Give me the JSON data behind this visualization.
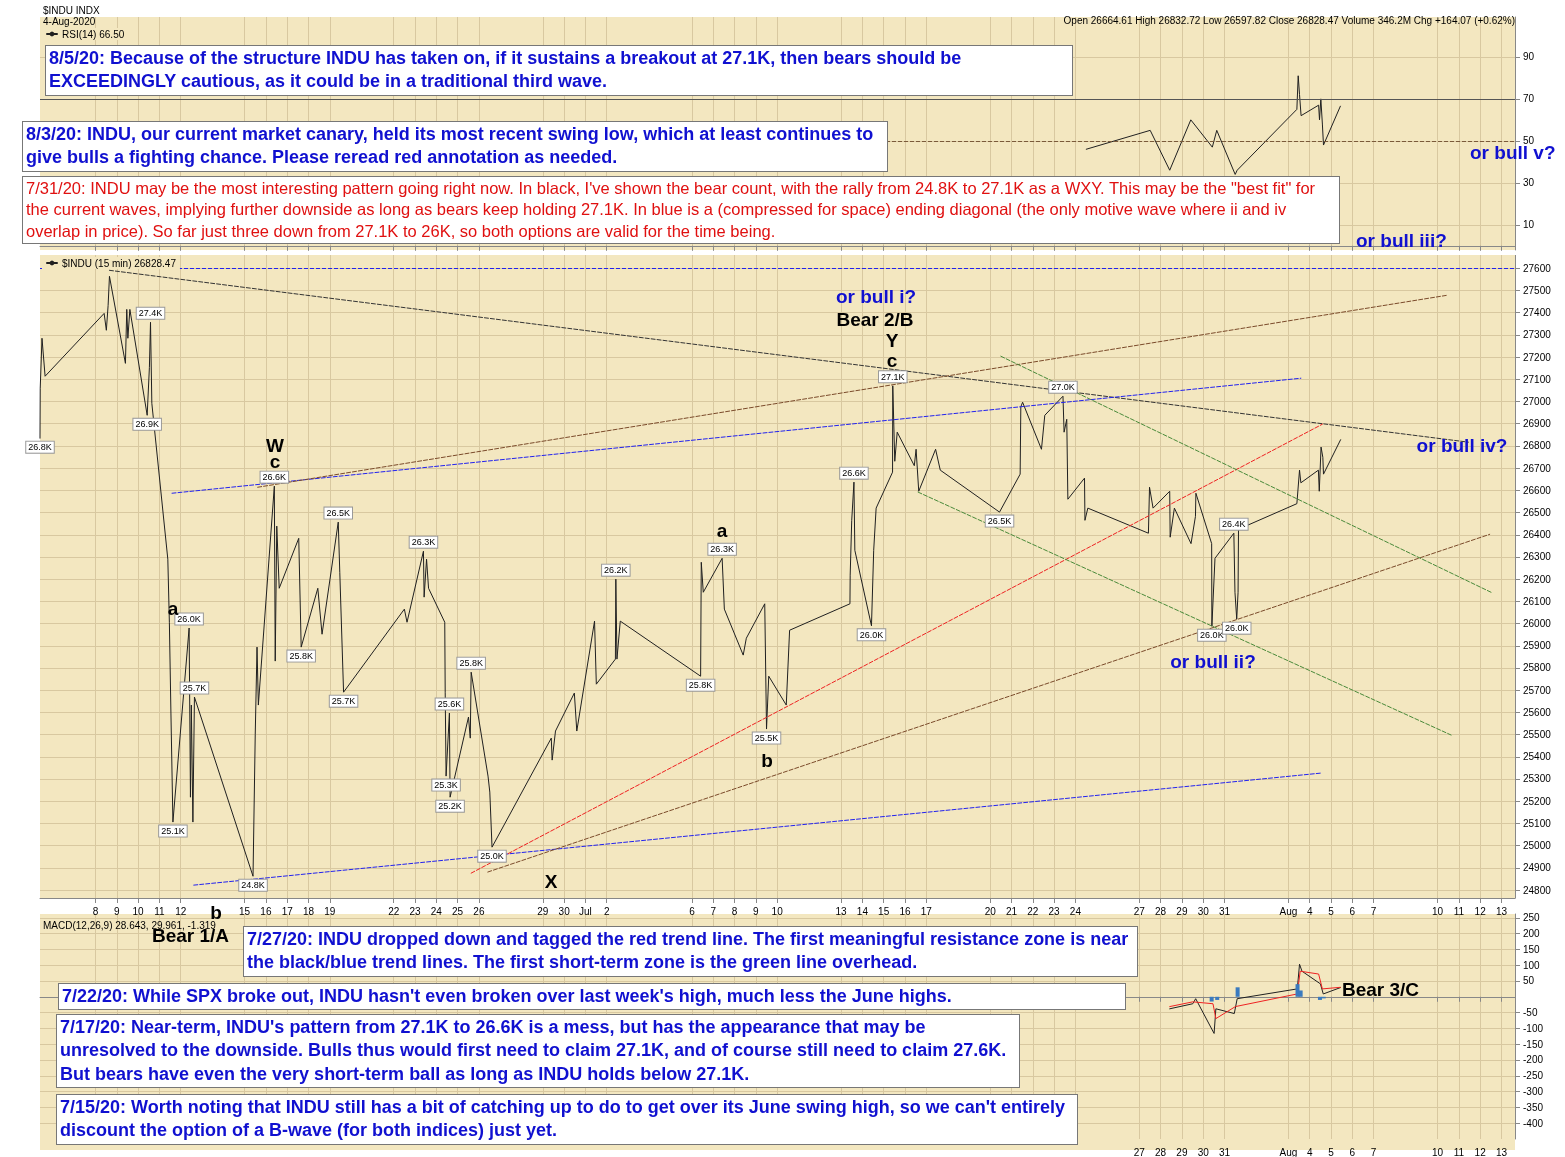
{
  "chart_data": [
    {
      "type": "line",
      "title": "$INDU INDX",
      "subtitle": "4-Aug-2020",
      "legend": "top left",
      "grid": true,
      "marker": "none",
      "tick_labels": "y",
      "xlim": [
        "2020-06-05T09:30",
        "2020-08-13T15:15"
      ],
      "ylim": [
        -2,
        109
      ],
      "yticks": [
        10,
        30,
        50,
        70,
        90
      ],
      "xticks": [
        "2020-06-08",
        "2020-06-09",
        "2020-06-10",
        "2020-06-11",
        "2020-06-12",
        "2020-06-15",
        "2020-06-16",
        "2020-06-17",
        "2020-06-18",
        "2020-06-19",
        "2020-06-22",
        "2020-06-23",
        "2020-06-24",
        "2020-06-25",
        "2020-06-26",
        "2020-06-29",
        "2020-06-30",
        "2020-07-01",
        "2020-07-02",
        "2020-07-06",
        "2020-07-07",
        "2020-07-08",
        "2020-07-09",
        "2020-07-10",
        "2020-07-13",
        "2020-07-14",
        "2020-07-15",
        "2020-07-16",
        "2020-07-17",
        "2020-07-20",
        "2020-07-21",
        "2020-07-22",
        "2020-07-23",
        "2020-07-24",
        "2020-07-27",
        "2020-07-28",
        "2020-07-29",
        "2020-07-30",
        "2020-07-31",
        "2020-08-03",
        "2020-08-04",
        "2020-08-05",
        "2020-08-06",
        "2020-08-07",
        "2020-08-10",
        "2020-08-11",
        "2020-08-12",
        "2020-08-13"
      ],
      "ref_lines": [
        {
          "axis": "y",
          "value": 70,
          "color": "#555555",
          "line_style": "solid"
        },
        {
          "axis": "y",
          "value": 50,
          "color": "#7a5a3a",
          "line_style": "dashed"
        }
      ],
      "series": [
        {
          "name": "RSI(14) 66.50",
          "color": "#202020",
          "x": [
            "2020-07-24T12:15",
            "2020-07-27T12:15",
            "2020-07-28T10:15",
            "2020-07-29T10:00",
            "2020-07-30T10:15",
            "2020-07-30T15:15",
            "2020-07-31T12:00",
            "2020-07-31T14:15",
            "2020-08-03T09:30",
            "2020-08-03T11:00",
            "2020-08-03T12:30",
            "2020-08-03T14:15",
            "2020-08-04T10:00",
            "2020-08-04T11:00",
            "2020-08-04T12:30",
            "2020-08-04T14:15",
            "2020-08-04T15:30",
            "2020-08-05T10:30"
          ],
          "values": [
            46,
            55,
            36,
            60,
            47,
            55,
            34,
            36,
            65,
            81,
            72,
            62,
            67,
            60,
            70,
            58,
            48,
            66.5
          ]
        }
      ],
      "annotations": [
        "Open 26664.61  High 26832.72  Low 26597.82  Close 26828.47  Volume 346.2M  Chg +164.07 (+0.62%)",
        "8/5/20:  Because of the structure INDU has taken on, if it sustains a breakout at 27.1K, then bears should be EXCEEDINGLY cautious, as it could be in a traditional third wave.",
        "8/3/20: INDU, our current market canary, held its most recent swing low, which at least continues to give bulls a fighting chance.  Please reread red annotation as needed.",
        "7/31/20:  INDU may be the most interesting pattern going right now.  In black, I've shown the bear count, with the rally from 24.8K to 27.1K as a WXY.  This may be the \"best fit\" for the current waves, implying further downside as long as bears keep holding 27.1K.  In blue is a (compressed for space) ending diagonal (the only motive wave where ii and iv overlap in price).  So far just three down from 27.1K to 26K, so both options are valid for the time being.",
        "or bull v?",
        "or bull iii?"
      ]
    },
    {
      "type": "line",
      "legend": "top left",
      "grid": true,
      "marker": "none",
      "xlim": [
        "2020-06-05T09:30",
        "2020-08-13T15:15"
      ],
      "ylim": [
        24764,
        27660
      ],
      "yticks": [
        24800,
        24900,
        25000,
        25100,
        25200,
        25300,
        25400,
        25500,
        25600,
        25700,
        25800,
        25900,
        26000,
        26100,
        26200,
        26300,
        26400,
        26500,
        26600,
        26700,
        26800,
        26900,
        27000,
        27100,
        27200,
        27300,
        27400,
        27500,
        27600
      ],
      "xticks": [
        {
          "value": "2020-06-08",
          "label": "8"
        },
        {
          "value": "2020-06-09",
          "label": "9"
        },
        {
          "value": "2020-06-10",
          "label": "10"
        },
        {
          "value": "2020-06-11",
          "label": "11"
        },
        {
          "value": "2020-06-12",
          "label": "12"
        },
        {
          "value": "2020-06-15",
          "label": "15"
        },
        {
          "value": "2020-06-16",
          "label": "16"
        },
        {
          "value": "2020-06-17",
          "label": "17"
        },
        {
          "value": "2020-06-18",
          "label": "18"
        },
        {
          "value": "2020-06-19",
          "label": "19"
        },
        {
          "value": "2020-06-22",
          "label": "22"
        },
        {
          "value": "2020-06-23",
          "label": "23"
        },
        {
          "value": "2020-06-24",
          "label": "24"
        },
        {
          "value": "2020-06-25",
          "label": "25"
        },
        {
          "value": "2020-06-26",
          "label": "26"
        },
        {
          "value": "2020-06-29",
          "label": "29"
        },
        {
          "value": "2020-06-30",
          "label": "30"
        },
        {
          "value": "2020-07-01",
          "label": "Jul"
        },
        {
          "value": "2020-07-02",
          "label": "2"
        },
        {
          "value": "2020-07-06",
          "label": "6"
        },
        {
          "value": "2020-07-07",
          "label": "7"
        },
        {
          "value": "2020-07-08",
          "label": "8"
        },
        {
          "value": "2020-07-09",
          "label": "9"
        },
        {
          "value": "2020-07-10",
          "label": "10"
        },
        {
          "value": "2020-07-13",
          "label": "13"
        },
        {
          "value": "2020-07-14",
          "label": "14"
        },
        {
          "value": "2020-07-15",
          "label": "15"
        },
        {
          "value": "2020-07-16",
          "label": "16"
        },
        {
          "value": "2020-07-17",
          "label": "17"
        },
        {
          "value": "2020-07-20",
          "label": "20"
        },
        {
          "value": "2020-07-21",
          "label": "21"
        },
        {
          "value": "2020-07-22",
          "label": "22"
        },
        {
          "value": "2020-07-23",
          "label": "23"
        },
        {
          "value": "2020-07-24",
          "label": "24"
        },
        {
          "value": "2020-07-27",
          "label": "27"
        },
        {
          "value": "2020-07-28",
          "label": "28"
        },
        {
          "value": "2020-07-29",
          "label": "29"
        },
        {
          "value": "2020-07-30",
          "label": "30"
        },
        {
          "value": "2020-07-31",
          "label": "31"
        },
        {
          "value": "2020-08-03",
          "label": "Aug"
        },
        {
          "value": "2020-08-04",
          "label": "4"
        },
        {
          "value": "2020-08-05",
          "label": "5"
        },
        {
          "value": "2020-08-06",
          "label": "6"
        },
        {
          "value": "2020-08-07",
          "label": "7"
        },
        {
          "value": "2020-08-10",
          "label": "10"
        },
        {
          "value": "2020-08-11",
          "label": "11"
        },
        {
          "value": "2020-08-12",
          "label": "12"
        },
        {
          "value": "2020-08-13",
          "label": "13"
        }
      ],
      "ref_lines": [
        {
          "axis": "y",
          "value": 27600,
          "color": "#2222ee",
          "line_style": "dashed"
        }
      ],
      "series": [
        {
          "name": "$INDU (15 min) 26828.47",
          "color": "#202020",
          "x": [
            "2020-06-05T09:30",
            "2020-06-05T09:45",
            "2020-06-05T11:45",
            "2020-06-05T15:15",
            "2020-06-08T09:45",
            "2020-06-08T12:15",
            "2020-06-08T14:15",
            "2020-06-08T15:45",
            "2020-06-09T09:45",
            "2020-06-09T11:15",
            "2020-06-09T12:30",
            "2020-06-09T14:45",
            "2020-06-10T10:15",
            "2020-06-10T12:45",
            "2020-06-10T14:00",
            "2020-06-10T15:30",
            "2020-06-11T09:30",
            "2020-06-11T11:15",
            "2020-06-11T13:00",
            "2020-06-11T15:15",
            "2020-06-12T09:30",
            "2020-06-12T11:00",
            "2020-06-12T12:00",
            "2020-06-12T13:45",
            "2020-06-12T15:30",
            "2020-06-15T09:30",
            "2020-06-15T12:00",
            "2020-06-15T14:00",
            "2020-06-15T15:30",
            "2020-06-16T09:30",
            "2020-06-16T10:30",
            "2020-06-16T12:15",
            "2020-06-16T15:00",
            "2020-06-17T13:00",
            "2020-06-17T15:45",
            "2020-06-18T10:30",
            "2020-06-18T15:15",
            "2020-06-19T09:30",
            "2020-06-19T11:15",
            "2020-06-19T15:30",
            "2020-06-22T12:00",
            "2020-06-22T15:00",
            "2020-06-23T09:30",
            "2020-06-23T10:15",
            "2020-06-23T13:00",
            "2020-06-23T15:15",
            "2020-06-24T09:30",
            "2020-06-24T10:00",
            "2020-06-24T11:00",
            "2020-06-24T14:45",
            "2020-06-24T15:30",
            "2020-06-25T12:15",
            "2020-06-25T14:15",
            "2020-06-25T15:15",
            "2020-06-26T10:15",
            "2020-06-26T12:15",
            "2020-06-26T14:45",
            "2020-06-29T09:30",
            "2020-06-29T10:30",
            "2020-06-29T14:15",
            "2020-06-30T11:30",
            "2020-06-30T14:15",
            "2020-07-01T10:15",
            "2020-07-01T12:15",
            "2020-07-02T09:45",
            "2020-07-02T10:15",
            "2020-07-02T11:30",
            "2020-07-02T15:15",
            "2020-07-06T09:45",
            "2020-07-06T10:30",
            "2020-07-06T12:45",
            "2020-07-07T10:00",
            "2020-07-07T12:30",
            "2020-07-08T09:45",
            "2020-07-08T13:15",
            "2020-07-09T10:00",
            "2020-07-09T12:00",
            "2020-07-09T14:30",
            "2020-07-10T10:15",
            "2020-07-10T14:00",
            "2020-07-13T10:00",
            "2020-07-13T10:15",
            "2020-07-13T12:00",
            "2020-07-13T14:30",
            "2020-07-13T15:30",
            "2020-07-14T10:15",
            "2020-07-14T12:45",
            "2020-07-14T15:30",
            "2020-07-15T10:00",
            "2020-07-15T10:15",
            "2020-07-15T12:30",
            "2020-07-15T15:15",
            "2020-07-16T10:30",
            "2020-07-16T12:30",
            "2020-07-16T15:30",
            "2020-07-17T10:30",
            "2020-07-17T15:45",
            "2020-07-20T10:30",
            "2020-07-21T09:45",
            "2020-07-21T10:30",
            "2020-07-21T12:30",
            "2020-07-22T09:45",
            "2020-07-22T13:30",
            "2020-07-23T10:00",
            "2020-07-23T11:15",
            "2020-07-23T14:15",
            "2020-07-23T15:30",
            "2020-07-24T10:15",
            "2020-07-24T10:45",
            "2020-07-24T14:00",
            "2020-07-27T10:15",
            "2020-07-27T11:30",
            "2020-07-27T15:30",
            "2020-07-28T10:15",
            "2020-07-28T10:45",
            "2020-07-28T15:30",
            "2020-07-29T10:15",
            "2020-07-29T15:15",
            "2020-07-29T15:45",
            "2020-07-30T09:30",
            "2020-07-30T09:45",
            "2020-07-30T13:15",
            "2020-07-31T10:30",
            "2020-07-31T11:45",
            "2020-07-31T13:45",
            "2020-07-31T15:15",
            "2020-07-31T15:45",
            "2020-08-03T09:30",
            "2020-08-03T12:30",
            "2020-08-03T14:00",
            "2020-08-04T09:45",
            "2020-08-04T10:45",
            "2020-08-04T12:45",
            "2020-08-04T14:45",
            "2020-08-04T15:30",
            "2020-08-05T10:45"
          ],
          "values": [
            26835,
            27060,
            27285,
            27114,
            27397,
            27321,
            27433,
            27564,
            27172,
            27415,
            27285,
            27415,
            26938,
            27154,
            27357,
            26992,
            26290,
            26006,
            25597,
            25106,
            25980,
            25218,
            25633,
            25106,
            25669,
            24862,
            25502,
            25894,
            25633,
            26619,
            25831,
            26439,
            26159,
            26384,
            25894,
            26159,
            25952,
            26457,
            26231,
            25691,
            26065,
            26006,
            26326,
            26119,
            26290,
            26159,
            26006,
            25691,
            25313,
            25597,
            25218,
            25579,
            25484,
            25781,
            25313,
            25241,
            24993,
            25484,
            25385,
            25516,
            25687,
            25516,
            26011,
            25727,
            25840,
            26200,
            25840,
            26011,
            25763,
            26276,
            26141,
            26294,
            26065,
            25858,
            25934,
            26089,
            25525,
            25763,
            25633,
            25970,
            26089,
            26218,
            26465,
            26637,
            26330,
            25990,
            26330,
            26520,
            26682,
            27071,
            26731,
            26862,
            26711,
            26785,
            26596,
            26785,
            26691,
            26502,
            26673,
            26976,
            26997,
            26785,
            26938,
            27024,
            26862,
            26920,
            26560,
            26655,
            26465,
            26520,
            26407,
            26614,
            26520,
            26596,
            26389,
            26520,
            26360,
            26483,
            26587,
            26360,
            25988,
            26294,
            26407,
            26141,
            26020,
            26141,
            26425,
            26540,
            26691,
            26634,
            26691,
            26596,
            26795,
            26749,
            26673,
            26828
          ]
        },
        {
          "color": "#333333",
          "line_style": "dashed",
          "x": [
            "2020-06-08T15:45",
            "2020-08-11T10:45"
          ],
          "values": [
            27591,
            26817
          ]
        },
        {
          "color": "#2222ee",
          "line_style": "dashed",
          "x": [
            "2020-06-11T14:15",
            "2020-08-03T14:00"
          ],
          "values": [
            26587,
            27105
          ]
        },
        {
          "color": "#7a4a2a",
          "line_style": "dashed",
          "x": [
            "2020-06-15T14:45",
            "2020-08-10T09:45"
          ],
          "values": [
            26614,
            27478
          ]
        },
        {
          "color": "#2222ee",
          "line_style": "dashed",
          "x": [
            "2020-06-12T14:45",
            "2020-08-04T13:45"
          ],
          "values": [
            24822,
            25327
          ]
        },
        {
          "color": "#ee2222",
          "line_style": "dashed",
          "x": [
            "2020-06-25T15:15",
            "2020-08-04T14:15"
          ],
          "values": [
            24876,
            26898
          ]
        },
        {
          "color": "#7a4a2a",
          "line_style": "dashed",
          "x": [
            "2020-06-26T10:00",
            "2020-08-12T10:45"
          ],
          "values": [
            24881,
            26402
          ]
        },
        {
          "color": "#4a8a3a",
          "line_style": "dashed",
          "x": [
            "2020-07-20T12:00",
            "2020-08-12T12:15"
          ],
          "values": [
            27204,
            26141
          ]
        },
        {
          "color": "#4a8a3a",
          "line_style": "dashed",
          "x": [
            "2020-07-16T14:45",
            "2020-08-10T15:15"
          ],
          "values": [
            26592,
            25498
          ]
        }
      ],
      "annotations": [
        {
          "text": "26.8K",
          "x": "2020-06-05T09:30",
          "y": 26835
        },
        {
          "text": "27.4K",
          "x": "2020-06-10T14:00",
          "y": 27357
        },
        {
          "text": "26.9K",
          "x": "2020-06-10T10:15",
          "y": 26938
        },
        {
          "text": "26.6K",
          "x": "2020-06-16T09:30",
          "y": 26619
        },
        {
          "text": "26.5K",
          "x": "2020-06-19T09:30",
          "y": 26457
        },
        {
          "text": "26.3K",
          "x": "2020-06-23T09:30",
          "y": 26326
        },
        {
          "text": "26.0K",
          "x": "2020-06-12T09:30",
          "y": 25980
        },
        {
          "text": "25.7K",
          "x": "2020-06-12T15:30",
          "y": 25669
        },
        {
          "text": "25.1K",
          "x": "2020-06-11T15:15",
          "y": 25106
        },
        {
          "text": "24.8K",
          "x": "2020-06-15T09:30",
          "y": 24862
        },
        {
          "text": "25.8K",
          "x": "2020-06-17T15:45",
          "y": 25894
        },
        {
          "text": "25.7K",
          "x": "2020-06-19T15:30",
          "y": 25691
        },
        {
          "text": "25.6K",
          "x": "2020-06-24T14:45",
          "y": 25597
        },
        {
          "text": "25.3K",
          "x": "2020-06-24T11:00",
          "y": 25313
        },
        {
          "text": "25.2K",
          "x": "2020-06-24T15:30",
          "y": 25218
        },
        {
          "text": "25.8K",
          "x": "2020-06-25T15:15",
          "y": 25781
        },
        {
          "text": "25.0K",
          "x": "2020-06-26T14:45",
          "y": 24993
        },
        {
          "text": "26.2K",
          "x": "2020-07-02T10:15",
          "y": 26200
        },
        {
          "text": "25.8K",
          "x": "2020-07-06T09:45",
          "y": 25763
        },
        {
          "text": "26.3K",
          "x": "2020-07-07T10:00",
          "y": 26294
        },
        {
          "text": "25.5K",
          "x": "2020-07-09T12:00",
          "y": 25525
        },
        {
          "text": "26.6K",
          "x": "2020-07-13T14:30",
          "y": 26637
        },
        {
          "text": "26.0K",
          "x": "2020-07-14T10:15",
          "y": 25990
        },
        {
          "text": "27.1K",
          "x": "2020-07-15T10:15",
          "y": 27071
        },
        {
          "text": "26.5K",
          "x": "2020-07-20T10:30",
          "y": 26502
        },
        {
          "text": "27.0K",
          "x": "2020-07-23T10:00",
          "y": 27024
        },
        {
          "text": "26.4K",
          "x": "2020-07-31T10:30",
          "y": 26407
        },
        {
          "text": "26.0K",
          "x": "2020-07-30T09:45",
          "y": 25988
        },
        {
          "text": "26.0K",
          "x": "2020-07-31T13:45",
          "y": 26020
        },
        "W",
        "c",
        "a",
        "a",
        "b",
        "X",
        "Bear 2/B",
        "Y",
        "c",
        "or bull i?",
        "or bull ii?",
        "or bull iv?"
      ]
    },
    {
      "type": "line",
      "title": "MACD(12,26,9) 28.643, 29.961, -1.319",
      "grid": true,
      "marker": "none",
      "xlim": [
        "2020-06-05T09:30",
        "2020-08-13T15:15"
      ],
      "ylim": [
        -450,
        262
      ],
      "yticks": [
        -400,
        -350,
        -300,
        -250,
        -200,
        -150,
        -100,
        -50,
        50,
        100,
        150,
        200,
        250
      ],
      "xticks": [
        {
          "value": "2020-06-08",
          "label": null
        },
        {
          "value": "2020-06-09",
          "label": null
        },
        {
          "value": "2020-06-10",
          "label": null
        },
        {
          "value": "2020-06-11",
          "label": null
        },
        {
          "value": "2020-06-12",
          "label": null
        },
        {
          "value": "2020-06-15",
          "label": null
        },
        {
          "value": "2020-06-16",
          "label": null
        },
        {
          "value": "2020-06-17",
          "label": null
        },
        {
          "value": "2020-06-18",
          "label": null
        },
        {
          "value": "2020-06-19",
          "label": null
        },
        {
          "value": "2020-06-22",
          "label": null
        },
        {
          "value": "2020-06-23",
          "label": null
        },
        {
          "value": "2020-06-24",
          "label": null
        },
        {
          "value": "2020-06-25",
          "label": null
        },
        {
          "value": "2020-06-26",
          "label": null
        },
        {
          "value": "2020-06-29",
          "label": null
        },
        {
          "value": "2020-06-30",
          "label": null
        },
        {
          "value": "2020-07-01",
          "label": null
        },
        {
          "value": "2020-07-02",
          "label": null
        },
        {
          "value": "2020-07-06",
          "label": null
        },
        {
          "value": "2020-07-07",
          "label": null
        },
        {
          "value": "2020-07-08",
          "label": null
        },
        {
          "value": "2020-07-09",
          "label": null
        },
        {
          "value": "2020-07-10",
          "label": null
        },
        {
          "value": "2020-07-13",
          "label": null
        },
        {
          "value": "2020-07-14",
          "label": null
        },
        {
          "value": "2020-07-15",
          "label": null
        },
        {
          "value": "2020-07-16",
          "label": null
        },
        {
          "value": "2020-07-17",
          "label": null
        },
        {
          "value": "2020-07-20",
          "label": null
        },
        {
          "value": "2020-07-21",
          "label": null
        },
        {
          "value": "2020-07-22",
          "label": null
        },
        {
          "value": "2020-07-23",
          "label": null
        },
        {
          "value": "2020-07-24",
          "label": null
        },
        {
          "value": "2020-07-27",
          "label": "27"
        },
        {
          "value": "2020-07-28",
          "label": "28"
        },
        {
          "value": "2020-07-29",
          "label": "29"
        },
        {
          "value": "2020-07-30",
          "label": "30"
        },
        {
          "value": "2020-07-31",
          "label": "31"
        },
        {
          "value": "2020-08-03",
          "label": "Aug"
        },
        {
          "value": "2020-08-04",
          "label": "4"
        },
        {
          "value": "2020-08-05",
          "label": "5"
        },
        {
          "value": "2020-08-06",
          "label": "6"
        },
        {
          "value": "2020-08-07",
          "label": "7"
        },
        {
          "value": "2020-08-10",
          "label": "10"
        },
        {
          "value": "2020-08-11",
          "label": "11"
        },
        {
          "value": "2020-08-12",
          "label": "12"
        },
        {
          "value": "2020-08-13",
          "label": "13"
        }
      ],
      "series": [
        {
          "type": "bar",
          "color": "#3a7abf",
          "x": [
            "2020-07-30T09:30",
            "2020-07-30T15:45",
            "2020-07-31T14:45",
            "2020-08-03T10:15",
            "2020-08-03T13:45",
            "2020-08-04T11:30",
            "2020-08-04T15:45"
          ],
          "values": [
            -15,
            -10,
            30,
            40,
            20,
            -10,
            -5
          ]
        },
        {
          "color": "#202020",
          "x": [
            "2020-07-28T10:15",
            "2020-07-29T12:15",
            "2020-07-29T15:30",
            "2020-07-30T12:15",
            "2020-07-30T14:15",
            "2020-07-31T11:00",
            "2020-07-31T14:15",
            "2020-08-03T10:00",
            "2020-08-03T12:30",
            "2020-08-03T15:15",
            "2020-08-04T12:00",
            "2020-08-04T15:15",
            "2020-08-05T10:30"
          ],
          "values": [
            -38,
            -22,
            -6,
            -116,
            -38,
            -53,
            -6,
            25,
            103,
            81,
            41,
            9,
            29
          ]
        },
        {
          "color": "#ee2222",
          "x": [
            "2020-07-28T10:15",
            "2020-07-29T12:15",
            "2020-07-30T11:00",
            "2020-07-30T14:15",
            "2020-07-31T12:15",
            "2020-08-03T10:00",
            "2020-08-03T13:15",
            "2020-08-04T10:00",
            "2020-08-04T14:15",
            "2020-08-05T10:30"
          ],
          "values": [
            -31,
            -16,
            -22,
            -69,
            -31,
            9,
            81,
            72,
            25,
            30
          ]
        }
      ],
      "annotations": [
        "7/27/20:  INDU dropped down and tagged the red trend line.  The first meaningful resistance zone is near the black/blue trend lines.  The first short-term zone is the green line overhead.",
        "7/22/20:  While SPX broke out, INDU hasn't even broken over last week's high, much less the June highs.",
        "7/17/20:  Near-term, INDU's pattern from 27.1K to 26.6K is a mess, but has the appearance that may be unresolved to the downside.  Bulls thus would first need to claim 27.1K, and of course still need to claim 27.6K.  But bears have even the very short-term ball as long as INDU holds below 27.1K.",
        "7/15/20:  Worth noting that INDU still has a bit of catching up to do to get over its June swing high, so we can't entirely discount the option of a B-wave (for both indices) just yet.",
        "Bear 1/A",
        "b",
        "Bear 3/C"
      ]
    }
  ]
}
